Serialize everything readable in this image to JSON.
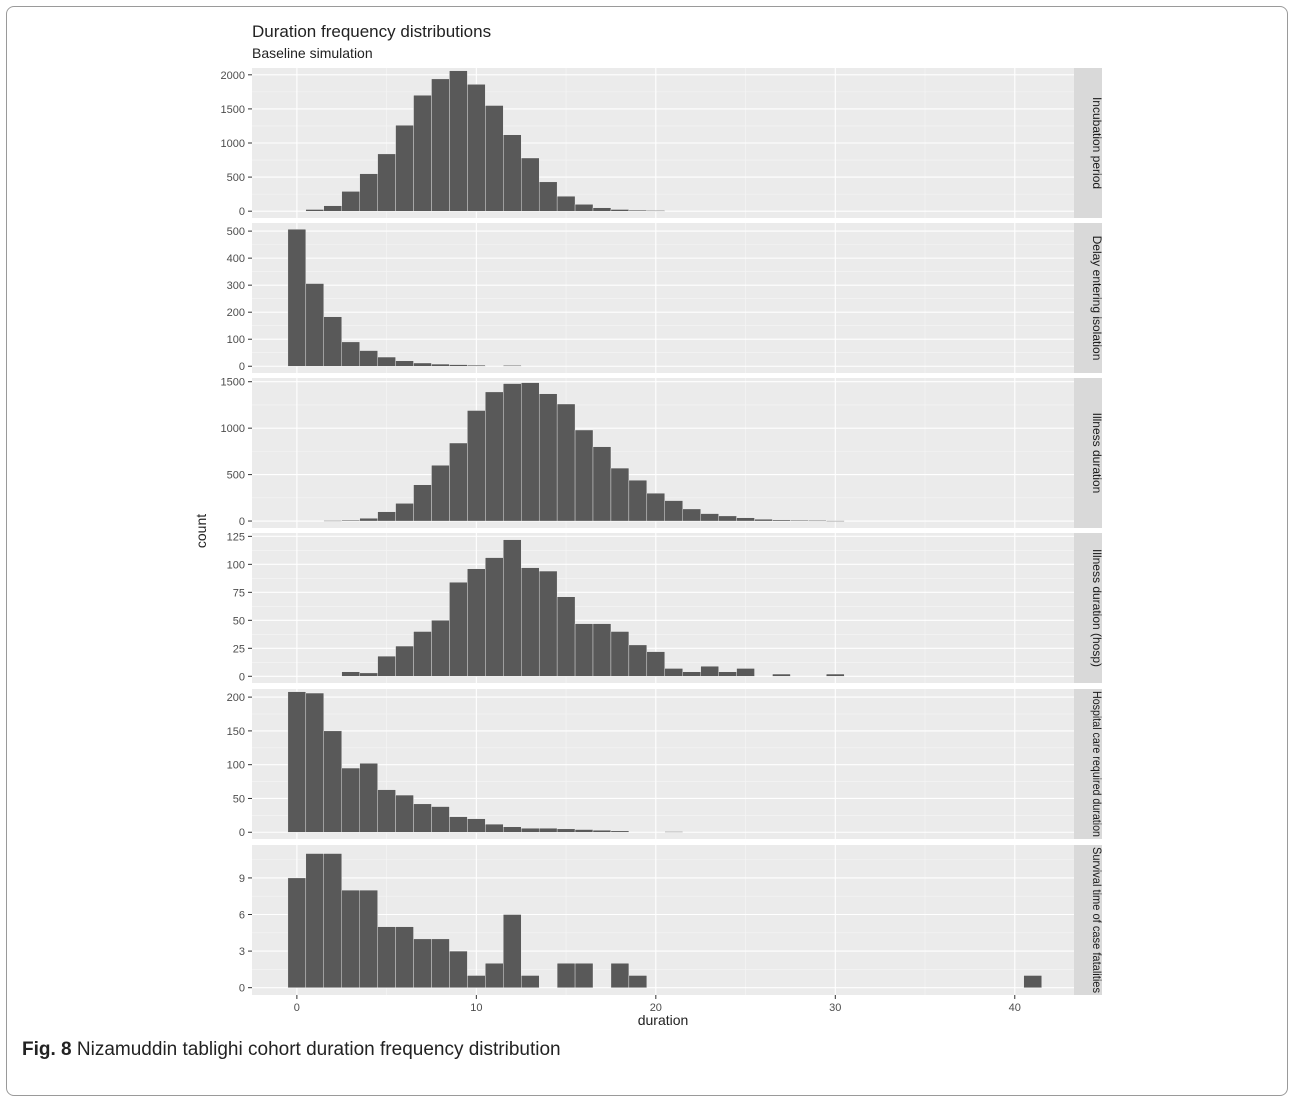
{
  "caption": {
    "label": "Fig. 8",
    "text": "Nizamuddin tablighi cohort duration frequency distribution"
  },
  "chart_data": {
    "type": "bar",
    "title": "Duration frequency distributions",
    "subtitle": "Baseline simulation",
    "xlabel": "duration",
    "ylabel": "count",
    "xlim": [
      -2.5,
      43.3
    ],
    "x_ticks": [
      0,
      10,
      20,
      30,
      40
    ],
    "bin_width": 1,
    "colors": {
      "bar": "#595959",
      "panel": "#ebebeb",
      "grid_major": "#ffffff",
      "strip": "#d9d9d9",
      "text": "#222222",
      "axis_text": "#4d4d4d"
    },
    "grid": true,
    "panels": [
      {
        "name": "Incubation period",
        "ylim": [
          -100,
          2100
        ],
        "y_ticks": [
          0,
          500,
          1000,
          1500,
          2000
        ],
        "x": [
          1,
          2,
          3,
          4,
          5,
          6,
          7,
          8,
          9,
          10,
          11,
          12,
          13,
          14,
          15,
          16,
          17,
          18,
          19,
          20
        ],
        "values": [
          25,
          80,
          290,
          550,
          840,
          1260,
          1700,
          1940,
          2060,
          1860,
          1550,
          1120,
          780,
          430,
          220,
          100,
          50,
          25,
          15,
          10
        ]
      },
      {
        "name": "Delay entering isolation",
        "ylim": [
          -25,
          530
        ],
        "y_ticks": [
          0,
          100,
          200,
          300,
          400,
          500
        ],
        "x": [
          0,
          1,
          2,
          3,
          4,
          5,
          6,
          7,
          8,
          9,
          10,
          12
        ],
        "values": [
          507,
          306,
          183,
          90,
          58,
          34,
          20,
          12,
          8,
          6,
          4,
          3
        ]
      },
      {
        "name": "Illness duration",
        "ylim": [
          -75,
          1540
        ],
        "y_ticks": [
          0,
          500,
          1000,
          1500
        ],
        "x": [
          2,
          3,
          4,
          5,
          6,
          7,
          8,
          9,
          10,
          11,
          12,
          13,
          14,
          15,
          16,
          17,
          18,
          19,
          20,
          21,
          22,
          23,
          24,
          25,
          26,
          27,
          28,
          29,
          30
        ],
        "values": [
          5,
          10,
          30,
          100,
          190,
          390,
          600,
          840,
          1190,
          1390,
          1480,
          1490,
          1370,
          1260,
          980,
          800,
          570,
          440,
          300,
          220,
          130,
          80,
          55,
          35,
          20,
          12,
          8,
          6,
          4
        ]
      },
      {
        "name": "Illness duration (hosp)",
        "ylim": [
          -6,
          128
        ],
        "y_ticks": [
          0,
          25,
          50,
          75,
          100,
          125
        ],
        "x": [
          3,
          4,
          5,
          6,
          7,
          8,
          9,
          10,
          11,
          12,
          13,
          14,
          15,
          16,
          17,
          18,
          19,
          20,
          21,
          22,
          23,
          24,
          25,
          27,
          30
        ],
        "values": [
          4,
          3,
          18,
          27,
          40,
          50,
          84,
          96,
          106,
          122,
          97,
          94,
          71,
          47,
          47,
          40,
          28,
          22,
          7,
          4,
          9,
          4,
          7,
          2,
          2
        ]
      },
      {
        "name": "Hospital care required duration",
        "ylim": [
          -10,
          212
        ],
        "y_ticks": [
          0,
          50,
          100,
          150,
          200
        ],
        "x": [
          0,
          1,
          2,
          3,
          4,
          5,
          6,
          7,
          8,
          9,
          10,
          11,
          12,
          13,
          14,
          15,
          16,
          17,
          18,
          21
        ],
        "values": [
          208,
          206,
          150,
          95,
          102,
          63,
          55,
          42,
          38,
          23,
          20,
          12,
          8,
          6,
          6,
          5,
          4,
          3,
          2,
          1
        ]
      },
      {
        "name": "Survival time of case fatalities",
        "ylim": [
          -0.6,
          11.7
        ],
        "y_ticks": [
          0,
          3,
          6,
          9
        ],
        "x": [
          0,
          1,
          2,
          3,
          4,
          5,
          6,
          7,
          8,
          9,
          10,
          11,
          12,
          13,
          15,
          16,
          18,
          19,
          41
        ],
        "values": [
          9,
          11,
          11,
          8,
          8,
          5,
          5,
          4,
          4,
          3,
          1,
          2,
          6,
          1,
          2,
          2,
          2,
          1,
          1
        ]
      }
    ]
  }
}
